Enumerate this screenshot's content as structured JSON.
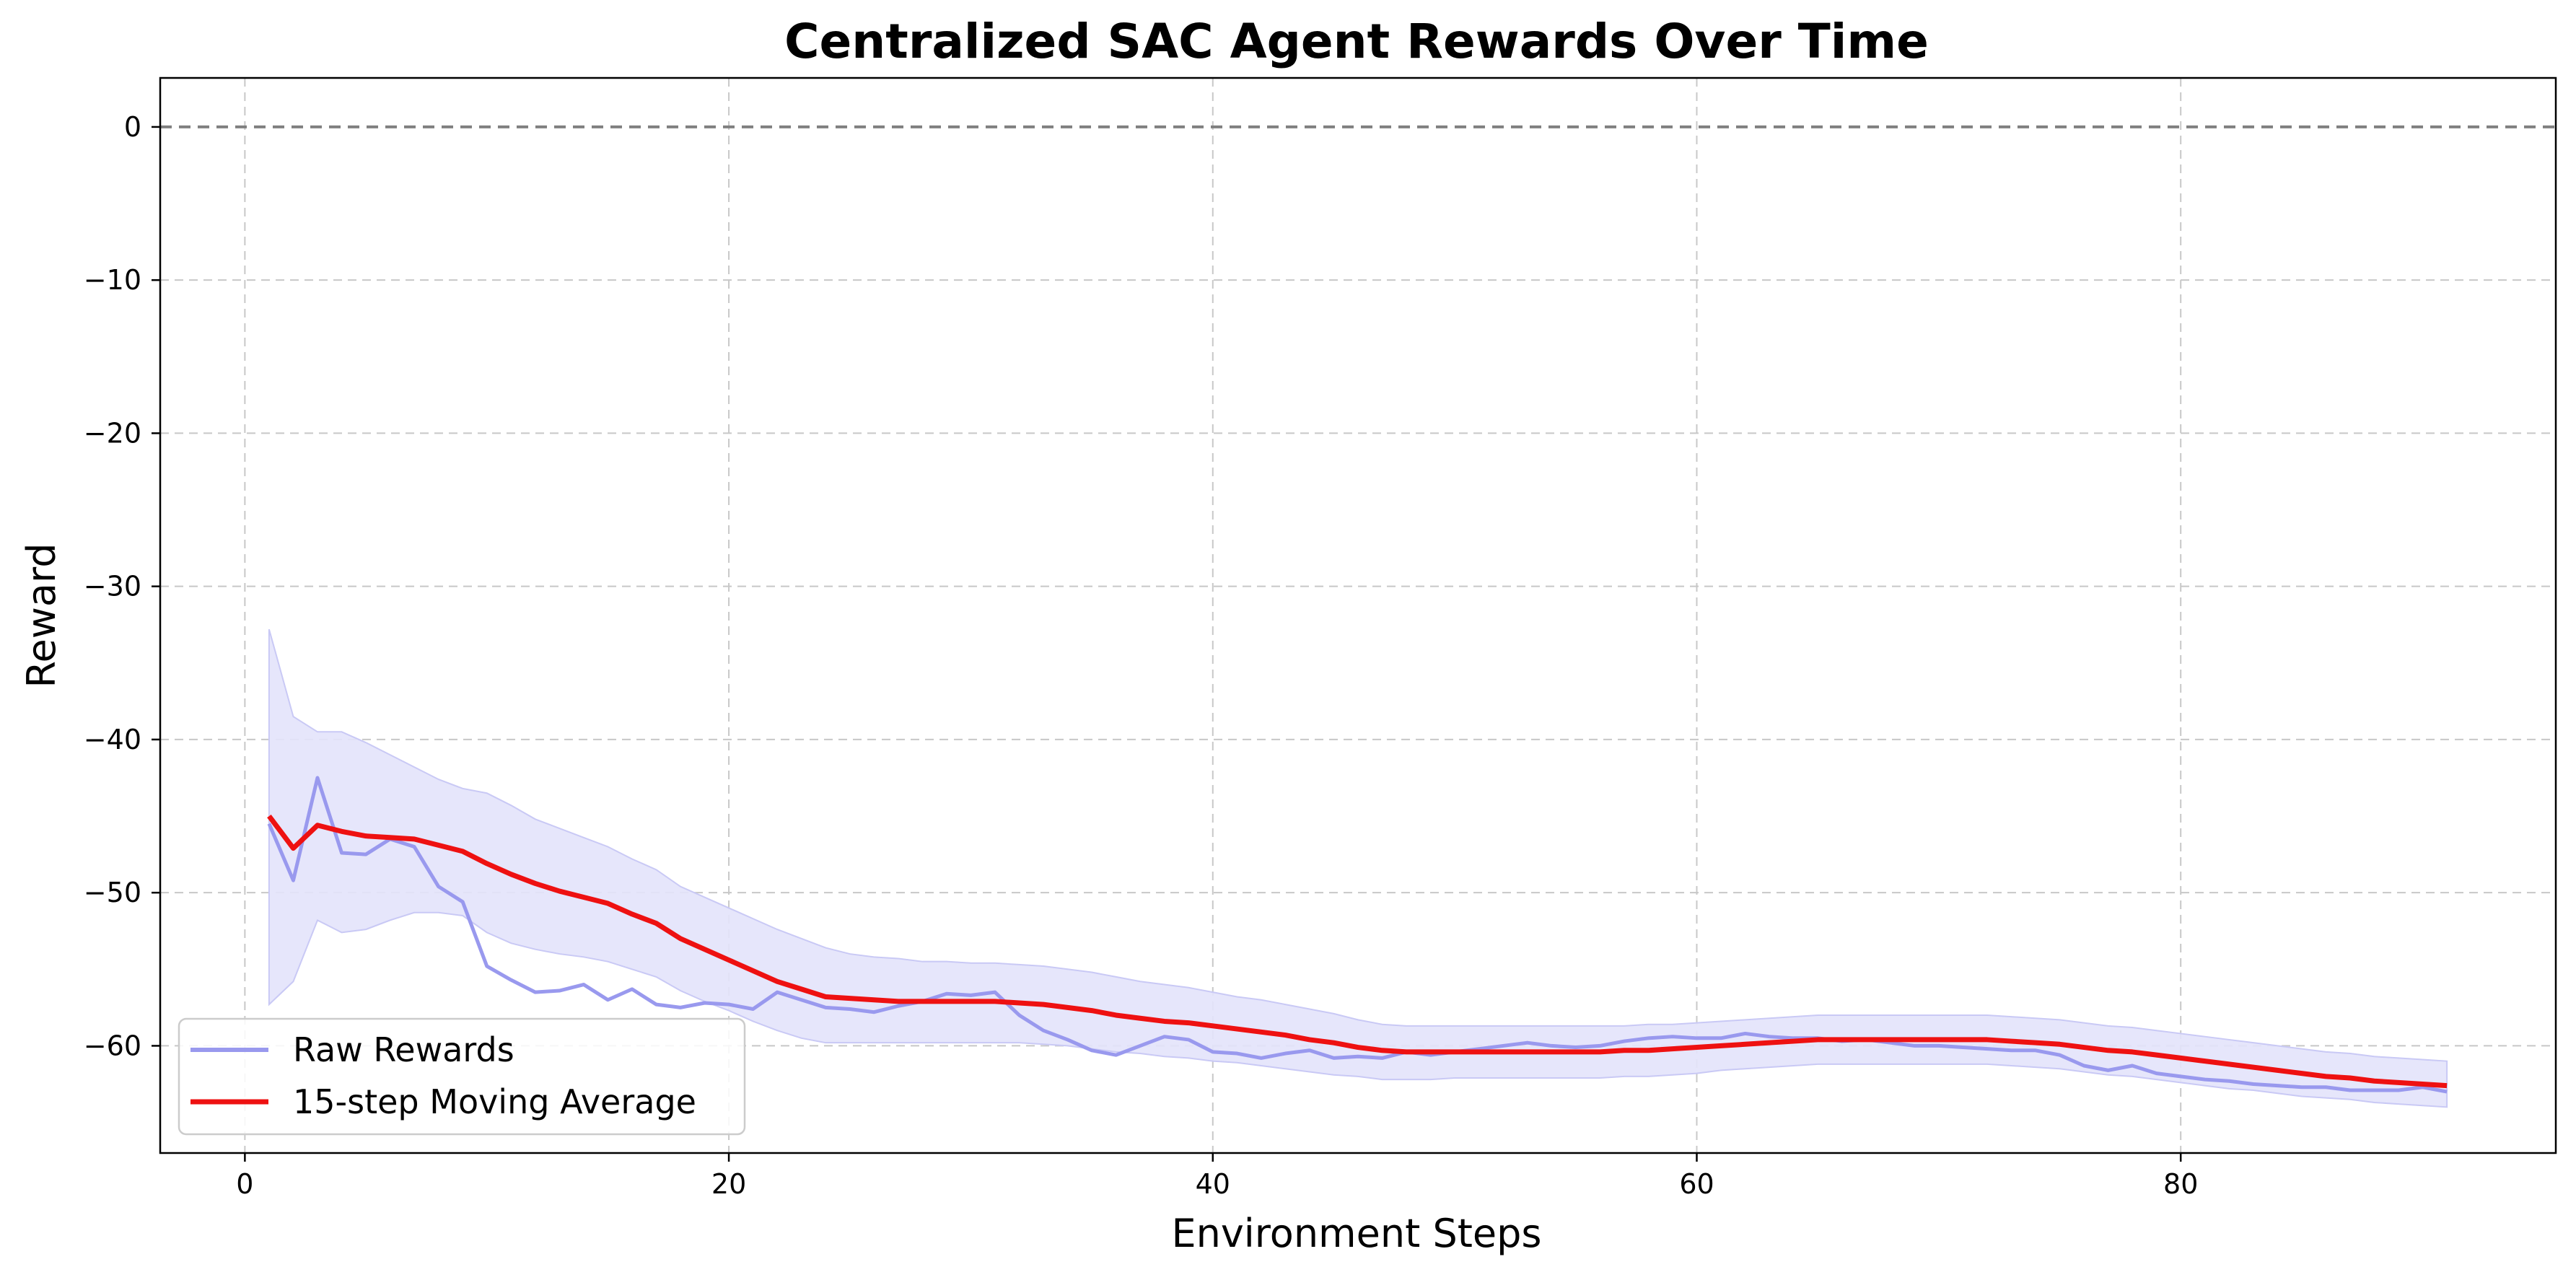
{
  "chart_data": {
    "type": "line",
    "title": "Centralized SAC Agent Rewards Over Time",
    "xlabel": "Environment Steps",
    "ylabel": "Reward",
    "xlim": [
      -3.5,
      95.5
    ],
    "ylim": [
      -67,
      3.2
    ],
    "x_ticks": [
      0,
      20,
      40,
      60,
      80
    ],
    "y_ticks": [
      0,
      -10,
      -20,
      -30,
      -40,
      -50,
      -60
    ],
    "x_tick_labels": [
      "0",
      "20",
      "40",
      "60",
      "80"
    ],
    "y_tick_labels": [
      "0",
      "−10",
      "−20",
      "−30",
      "−40",
      "−50",
      "−60"
    ],
    "grid": true,
    "reference_line": {
      "y": 0,
      "style": "dashed",
      "color": "#808080"
    },
    "legend": {
      "position": "lower-left",
      "entries": [
        "Raw Rewards",
        "15-step Moving Average"
      ]
    },
    "colors": {
      "raw": "#9999ee",
      "band": "#e3e3fb",
      "band_edge": "#c9c9f5",
      "average": "#ee1111",
      "grid": "#c8c8c8"
    },
    "x": [
      1,
      2,
      3,
      4,
      5,
      6,
      7,
      8,
      9,
      10,
      11,
      12,
      13,
      14,
      15,
      16,
      17,
      18,
      19,
      20,
      21,
      22,
      23,
      24,
      25,
      26,
      27,
      28,
      29,
      30,
      31,
      32,
      33,
      34,
      35,
      36,
      37,
      38,
      39,
      40,
      41,
      42,
      43,
      44,
      45,
      46,
      47,
      48,
      49,
      50,
      51,
      52,
      53,
      54,
      55,
      56,
      57,
      58,
      59,
      60,
      61,
      62,
      63,
      64,
      65,
      66,
      67,
      68,
      69,
      70,
      71,
      72,
      73,
      74,
      75,
      76,
      77,
      78,
      79,
      80,
      81,
      82,
      83,
      84,
      85,
      86,
      87,
      88,
      89,
      90,
      91
    ],
    "series": [
      {
        "name": "Raw Rewards",
        "values": [
          -45.5,
          -49.2,
          -42.5,
          -47.4,
          -47.5,
          -46.5,
          -47.0,
          -49.6,
          -50.6,
          -54.8,
          -55.7,
          -56.5,
          -56.4,
          -56.0,
          -57.0,
          -56.3,
          -57.3,
          -57.5,
          -57.2,
          -57.3,
          -57.6,
          -56.5,
          -57.0,
          -57.5,
          -57.6,
          -57.8,
          -57.4,
          -57.1,
          -56.6,
          -56.7,
          -56.5,
          -58.0,
          -59.0,
          -59.6,
          -60.3,
          -60.6,
          -60.0,
          -59.4,
          -59.6,
          -60.4,
          -60.5,
          -60.8,
          -60.5,
          -60.3,
          -60.8,
          -60.7,
          -60.8,
          -60.4,
          -60.6,
          -60.4,
          -60.2,
          -60.0,
          -59.8,
          -60.0,
          -60.1,
          -60.0,
          -59.7,
          -59.5,
          -59.4,
          -59.5,
          -59.5,
          -59.2,
          -59.4,
          -59.5,
          -59.5,
          -59.7,
          -59.6,
          -59.8,
          -60.0,
          -60.0,
          -60.1,
          -60.2,
          -60.3,
          -60.3,
          -60.6,
          -61.3,
          -61.6,
          -61.3,
          -61.8,
          -62.0,
          -62.2,
          -62.3,
          -62.5,
          -62.6,
          -62.7,
          -62.7,
          -62.9,
          -62.9,
          -62.9,
          -62.7,
          -63.0
        ]
      },
      {
        "name": "15-step Moving Average",
        "values": [
          -45.0,
          -47.1,
          -45.6,
          -46.0,
          -46.3,
          -46.4,
          -46.5,
          -46.9,
          -47.3,
          -48.1,
          -48.8,
          -49.4,
          -49.9,
          -50.3,
          -50.7,
          -51.4,
          -52.0,
          -53.0,
          -53.7,
          -54.4,
          -55.1,
          -55.8,
          -56.3,
          -56.8,
          -56.9,
          -57.0,
          -57.1,
          -57.1,
          -57.1,
          -57.1,
          -57.1,
          -57.2,
          -57.3,
          -57.5,
          -57.7,
          -58.0,
          -58.2,
          -58.4,
          -58.5,
          -58.7,
          -58.9,
          -59.1,
          -59.3,
          -59.6,
          -59.8,
          -60.1,
          -60.3,
          -60.4,
          -60.4,
          -60.4,
          -60.4,
          -60.4,
          -60.4,
          -60.4,
          -60.4,
          -60.4,
          -60.3,
          -60.3,
          -60.2,
          -60.1,
          -60.0,
          -59.9,
          -59.8,
          -59.7,
          -59.6,
          -59.6,
          -59.6,
          -59.6,
          -59.6,
          -59.6,
          -59.6,
          -59.6,
          -59.7,
          -59.8,
          -59.9,
          -60.1,
          -60.3,
          -60.4,
          -60.6,
          -60.8,
          -61.0,
          -61.2,
          -61.4,
          -61.6,
          -61.8,
          -62.0,
          -62.1,
          -62.3,
          -62.4,
          -62.5,
          -62.6
        ]
      }
    ],
    "band": {
      "upper": [
        -32.8,
        -38.5,
        -39.5,
        -39.5,
        -40.2,
        -41.0,
        -41.8,
        -42.6,
        -43.2,
        -43.5,
        -44.3,
        -45.2,
        -45.8,
        -46.4,
        -47.0,
        -47.8,
        -48.5,
        -49.6,
        -50.3,
        -51.0,
        -51.7,
        -52.4,
        -53.0,
        -53.6,
        -54.0,
        -54.2,
        -54.3,
        -54.5,
        -54.5,
        -54.6,
        -54.6,
        -54.7,
        -54.8,
        -55.0,
        -55.2,
        -55.5,
        -55.8,
        -56.0,
        -56.2,
        -56.5,
        -56.8,
        -57.0,
        -57.3,
        -57.6,
        -57.9,
        -58.3,
        -58.6,
        -58.7,
        -58.7,
        -58.7,
        -58.7,
        -58.7,
        -58.7,
        -58.7,
        -58.7,
        -58.7,
        -58.7,
        -58.6,
        -58.6,
        -58.5,
        -58.4,
        -58.3,
        -58.2,
        -58.1,
        -58.0,
        -58.0,
        -58.0,
        -58.0,
        -58.0,
        -58.0,
        -58.0,
        -58.0,
        -58.1,
        -58.2,
        -58.3,
        -58.5,
        -58.7,
        -58.8,
        -59.0,
        -59.2,
        -59.4,
        -59.6,
        -59.8,
        -60.0,
        -60.2,
        -60.4,
        -60.5,
        -60.7,
        -60.8,
        -60.9,
        -61.0
      ],
      "lower": [
        -57.3,
        -55.8,
        -51.8,
        -52.6,
        -52.4,
        -51.8,
        -51.3,
        -51.3,
        -51.5,
        -52.6,
        -53.3,
        -53.7,
        -54.0,
        -54.2,
        -54.5,
        -55.0,
        -55.5,
        -56.4,
        -57.1,
        -57.7,
        -58.4,
        -59.0,
        -59.5,
        -59.8,
        -59.8,
        -59.8,
        -59.8,
        -59.8,
        -59.8,
        -59.8,
        -59.8,
        -59.8,
        -59.9,
        -60.0,
        -60.2,
        -60.4,
        -60.5,
        -60.7,
        -60.8,
        -61.0,
        -61.1,
        -61.3,
        -61.5,
        -61.7,
        -61.9,
        -62.0,
        -62.2,
        -62.2,
        -62.2,
        -62.1,
        -62.1,
        -62.1,
        -62.1,
        -62.1,
        -62.1,
        -62.1,
        -62.0,
        -62.0,
        -61.9,
        -61.8,
        -61.6,
        -61.5,
        -61.4,
        -61.3,
        -61.2,
        -61.2,
        -61.2,
        -61.2,
        -61.2,
        -61.2,
        -61.2,
        -61.2,
        -61.3,
        -61.4,
        -61.5,
        -61.7,
        -61.9,
        -62.0,
        -62.2,
        -62.4,
        -62.6,
        -62.8,
        -62.9,
        -63.1,
        -63.3,
        -63.4,
        -63.5,
        -63.7,
        -63.8,
        -63.9,
        -64.0
      ]
    }
  }
}
